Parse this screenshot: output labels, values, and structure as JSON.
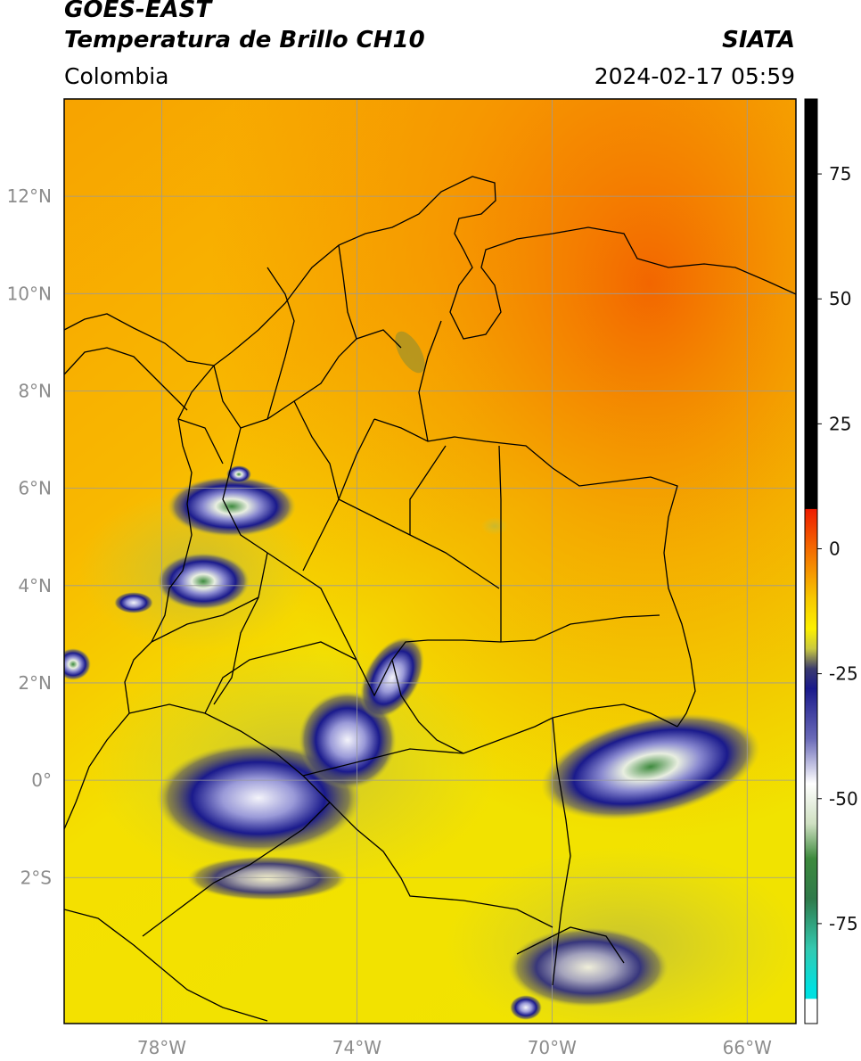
{
  "header": {
    "title_line1": "GOES-EAST",
    "title_line2": "Temperatura de Brillo CH10",
    "organization": "SIATA",
    "region": "Colombia",
    "timestamp": "2024-02-17 05:59"
  },
  "map": {
    "lon_range": [
      -80,
      -65
    ],
    "lat_range": [
      -5,
      14
    ],
    "lon_ticks": [
      {
        "value": -78,
        "label": "78°W"
      },
      {
        "value": -74,
        "label": "74°W"
      },
      {
        "value": -70,
        "label": "70°W"
      },
      {
        "value": -66,
        "label": "66°W"
      }
    ],
    "lat_ticks": [
      {
        "value": 12,
        "label": "12°N"
      },
      {
        "value": 10,
        "label": "10°N"
      },
      {
        "value": 8,
        "label": "8°N"
      },
      {
        "value": 6,
        "label": "6°N"
      },
      {
        "value": 4,
        "label": "4°N"
      },
      {
        "value": 2,
        "label": "2°N"
      },
      {
        "value": 0,
        "label": "0°"
      },
      {
        "value": -2,
        "label": "2°S"
      }
    ],
    "gridlines": true,
    "gridline_color": "#9a9a9a",
    "boundary_color": "#000000",
    "background_color": "#f2c200"
  },
  "colorbar": {
    "range": [
      -95,
      90
    ],
    "ticks": [
      {
        "value": 75,
        "label": "75"
      },
      {
        "value": 50,
        "label": "50"
      },
      {
        "value": 25,
        "label": "25"
      },
      {
        "value": 0,
        "label": "0"
      },
      {
        "value": -25,
        "label": "-25"
      },
      {
        "value": -50,
        "label": "-50"
      },
      {
        "value": -75,
        "label": "-75"
      }
    ],
    "stops": [
      {
        "value": 90,
        "color": "#000000"
      },
      {
        "value": 8,
        "color": "#000000"
      },
      {
        "value": 7.9,
        "color": "#ee1c00"
      },
      {
        "value": 0,
        "color": "#f46a00"
      },
      {
        "value": -10,
        "color": "#f7c900"
      },
      {
        "value": -16,
        "color": "#fcf000"
      },
      {
        "value": -20,
        "color": "#c9c940"
      },
      {
        "value": -24,
        "color": "#3b3b6e"
      },
      {
        "value": -28,
        "color": "#1a1a8c"
      },
      {
        "value": -38,
        "color": "#6a6ab8"
      },
      {
        "value": -47,
        "color": "#ffffff"
      },
      {
        "value": -55,
        "color": "#cfe0c2"
      },
      {
        "value": -62,
        "color": "#3d8a3d"
      },
      {
        "value": -70,
        "color": "#2f7a4a"
      },
      {
        "value": -80,
        "color": "#33c9b0"
      },
      {
        "value": -88,
        "color": "#00e0e0"
      },
      {
        "value": -90,
        "color": "#00e0e0"
      },
      {
        "value": -90.1,
        "color": "#ffffff"
      },
      {
        "value": -95,
        "color": "#ffffff"
      }
    ]
  }
}
